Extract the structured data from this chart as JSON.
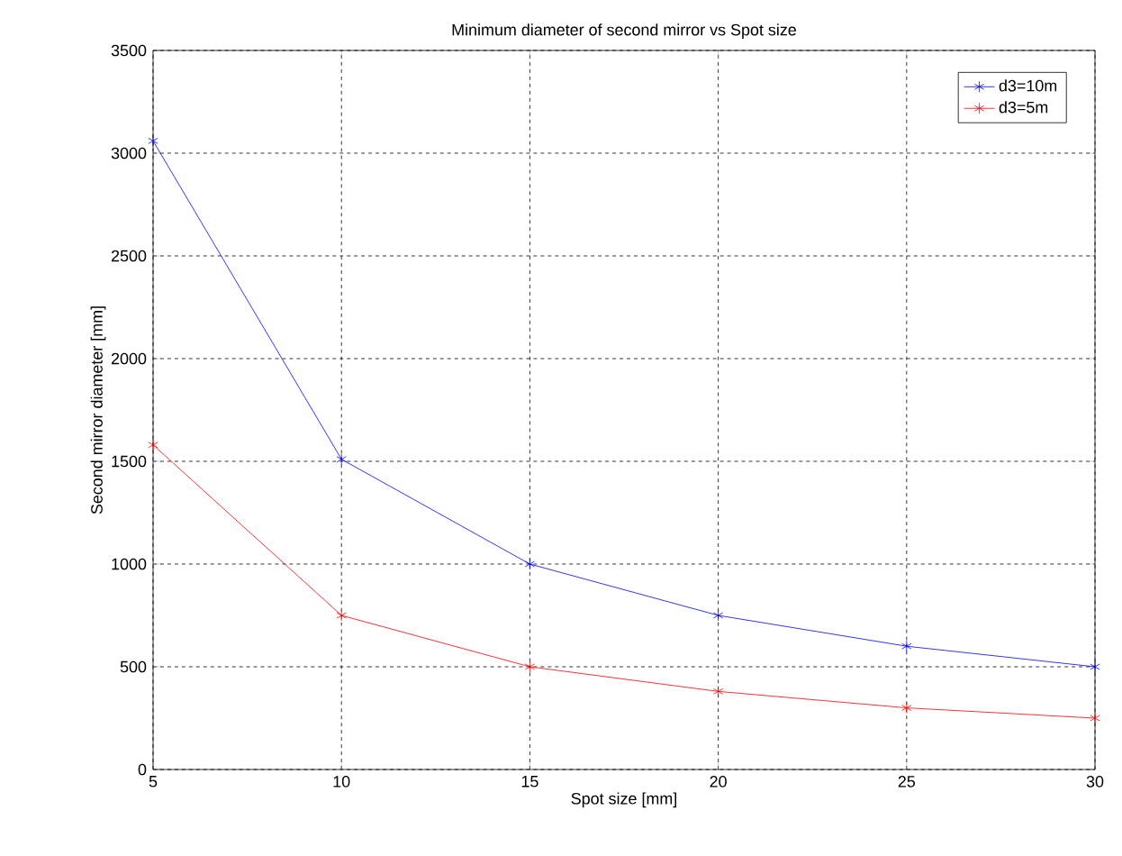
{
  "chart_data": {
    "type": "line",
    "title": "Minimum diameter of second mirror vs Spot size",
    "xlabel": "Spot size [mm]",
    "ylabel": "Second mirror diameter [mm]",
    "x": [
      5,
      10,
      15,
      20,
      25,
      30
    ],
    "series": [
      {
        "name": "d3=10m",
        "color": "#0000ff",
        "values": [
          3060,
          1510,
          1000,
          750,
          600,
          500
        ]
      },
      {
        "name": "d3=5m",
        "color": "#ff0000",
        "values": [
          1580,
          750,
          500,
          380,
          300,
          250
        ]
      }
    ],
    "xlim": [
      5,
      30
    ],
    "ylim": [
      0,
      3500
    ],
    "xticks": [
      5,
      10,
      15,
      20,
      25,
      30
    ],
    "yticks": [
      0,
      500,
      1000,
      1500,
      2000,
      2500,
      3000,
      3500
    ],
    "grid": true,
    "legend": "top right",
    "marker": "cross",
    "line_style": "solid"
  }
}
